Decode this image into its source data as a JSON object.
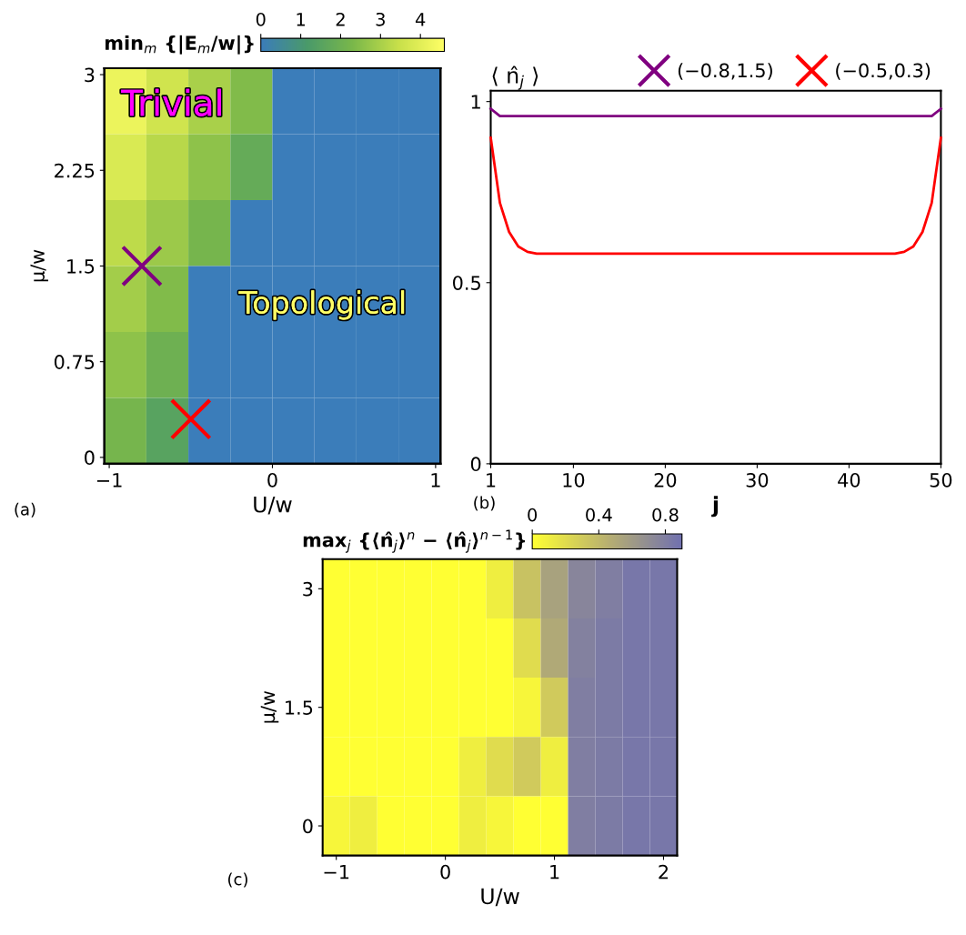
{
  "chart_data": [
    {
      "type": "heatmap",
      "clabel": "min$_{m}$ {|E$_{m}$/w|}",
      "tick_labels": false,
      "categories": [
        null,
        null,
        null,
        null,
        null,
        null,
        null,
        null
      ],
      "y_categories": [
        null,
        null,
        null,
        null,
        null,
        null
      ],
      "cells": [
        [
          4.2,
          3.6,
          3.0,
          2.4,
          0,
          0,
          0,
          0
        ],
        [
          3.8,
          3.2,
          2.6,
          1.8,
          0,
          0,
          0,
          0
        ],
        [
          3.3,
          2.8,
          2.2,
          0,
          0,
          0,
          0,
          0
        ],
        [
          2.9,
          2.4,
          0,
          0,
          0,
          0,
          0,
          0
        ],
        [
          2.6,
          2.0,
          0,
          0,
          0,
          0,
          0,
          0
        ],
        [
          2.2,
          1.5,
          0,
          0,
          0,
          0,
          0,
          0
        ]
      ],
      "clim": [
        0,
        4.6
      ],
      "cticks": [
        0,
        1,
        2,
        3,
        4
      ]
    },
    {
      "type": "scatter",
      "xlabel": "U/w",
      "ylabel": "μ/w",
      "xlim": [
        -1.03,
        1.03
      ],
      "ylim": [
        -0.05,
        3.05
      ],
      "xticks": [
        {
          "value": -1,
          "label": "−1"
        },
        0,
        1
      ],
      "yticks": [
        0,
        0.75,
        1.5,
        2.25,
        3
      ],
      "series": [
        {
          "x": [
            -0.8
          ],
          "values": [
            1.5
          ],
          "color": "#800080"
        },
        {
          "x": [
            -0.5
          ],
          "values": [
            0.3
          ],
          "color": "#ff0000"
        }
      ],
      "marker": "cross",
      "annotations": [
        "Trivial",
        "Topological",
        "(a)"
      ]
    },
    {
      "type": "line",
      "title": "⟨ n̂$_{j}$ ⟩",
      "xlabel": "j",
      "xlim": [
        1,
        50
      ],
      "ylim": [
        0,
        1.03
      ],
      "xticks": [
        1,
        10,
        20,
        30,
        40,
        50
      ],
      "yticks": [
        0,
        0.5,
        1
      ],
      "series": [
        {
          "name": "(−0.8,1.5)",
          "color": "#800080",
          "x": [
            1,
            2,
            3,
            10,
            20,
            30,
            40,
            48,
            49,
            50
          ],
          "values": [
            0.98,
            0.96,
            0.96,
            0.96,
            0.96,
            0.96,
            0.96,
            0.96,
            0.96,
            0.98
          ]
        },
        {
          "name": "(−0.5,0.3)",
          "color": "#ff0000",
          "x": [
            1,
            2,
            3,
            4,
            5,
            6,
            8,
            10,
            20,
            30,
            40,
            43,
            45,
            46,
            47,
            48,
            49,
            50
          ],
          "values": [
            0.9,
            0.72,
            0.64,
            0.6,
            0.585,
            0.58,
            0.58,
            0.58,
            0.58,
            0.58,
            0.58,
            0.58,
            0.58,
            0.585,
            0.6,
            0.64,
            0.72,
            0.9
          ]
        }
      ],
      "legend": "top",
      "marker": "none",
      "annotations": [
        "(b)"
      ]
    },
    {
      "type": "heatmap",
      "xlabel": "U/w",
      "ylabel": "μ/w",
      "clabel": "max$_{j}$ {⟨n̂$_{j}$⟩$^{n}$ − ⟨n̂$_{j}$⟩$^{n−1}$}",
      "categories": [
        "−1",
        null,
        null,
        null,
        "0",
        null,
        null,
        null,
        "1",
        null,
        null,
        null,
        "2"
      ],
      "y_categories": [
        "3",
        null,
        "1.5",
        null,
        "0"
      ],
      "cells": [
        [
          0,
          0,
          0,
          0,
          0,
          0,
          0.1,
          0.35,
          0.55,
          0.75,
          0.8,
          0.85,
          0.85
        ],
        [
          0,
          0,
          0,
          0,
          0,
          0,
          0,
          0.2,
          0.5,
          0.78,
          0.82,
          0.85,
          0.85
        ],
        [
          0,
          0,
          0,
          0,
          0,
          0,
          0,
          0.05,
          0.3,
          0.8,
          0.82,
          0.85,
          0.85
        ],
        [
          0,
          0,
          0,
          0,
          0,
          0.1,
          0.2,
          0.3,
          0.1,
          0.8,
          0.82,
          0.85,
          0.85
        ],
        [
          0.05,
          0.1,
          0,
          0,
          0,
          0.1,
          0.05,
          0,
          0,
          0.8,
          0.82,
          0.85,
          0.85
        ]
      ],
      "clim": [
        0,
        0.9
      ],
      "cticks": [
        0,
        0.4,
        0.8
      ],
      "annotations": [
        "(c)"
      ]
    }
  ]
}
